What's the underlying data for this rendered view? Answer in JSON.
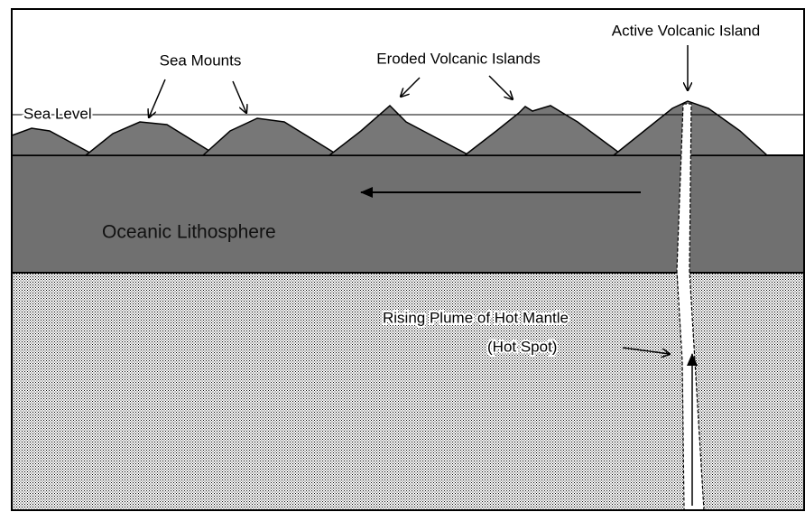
{
  "labels": {
    "active_island": "Active Volcanic Island",
    "sea_mounts": "Sea Mounts",
    "eroded_islands": "Eroded Volcanic Islands",
    "sea_level": "Sea Level",
    "lithosphere": "Oceanic Lithosphere",
    "plume": "Rising Plume of Hot Mantle",
    "hot_spot": "(Hot Spot)"
  }
}
